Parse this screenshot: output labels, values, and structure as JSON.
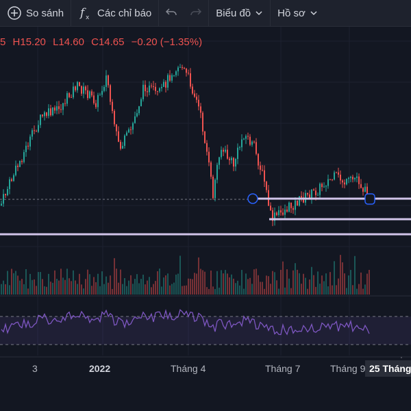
{
  "toolbar": {
    "compare_label": "So sánh",
    "indicators_label": "Các chỉ báo",
    "chart_label": "Biểu đồ",
    "profile_label": "Hồ sơ"
  },
  "ohlc": {
    "open_fragment": "5",
    "high": "H15.20",
    "low": "L14.60",
    "close": "C14.65",
    "change": "−0.20 (−1.35%)"
  },
  "x_axis": {
    "ticks": [
      "3",
      "2022",
      "Tháng 4",
      "Tháng 7",
      "Tháng 9"
    ],
    "crosshair_date": "25 Tháng"
  },
  "colors": {
    "background": "#131722",
    "up": "#26a69a",
    "down": "#ef5350",
    "rsi_line": "#7e57c2",
    "level_line": "#d1c4e9"
  },
  "chart_data": {
    "type": "candlestick",
    "last_bar": {
      "high": 15.2,
      "low": 14.6,
      "close": 14.65,
      "change": -0.2,
      "change_pct": -1.35
    },
    "horizontal_levels": 3,
    "indicators": [
      "volume",
      "rsi"
    ]
  }
}
